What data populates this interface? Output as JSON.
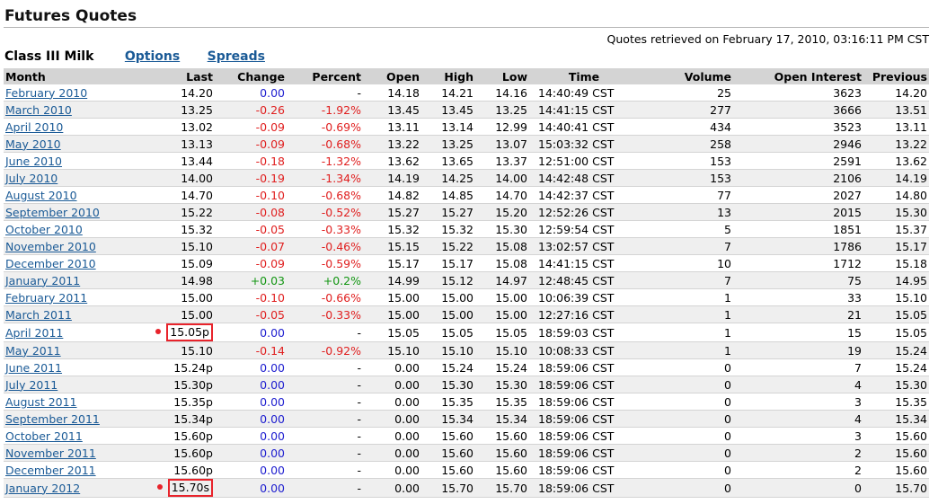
{
  "page_title": "Futures Quotes",
  "product": "Class III Milk",
  "nav": {
    "options": "Options",
    "spreads": "Spreads"
  },
  "retrieved": "Quotes retrieved on February 17, 2010, 03:16:11 PM CST",
  "columns": [
    "Month",
    "Last",
    "Change",
    "Percent",
    "Open",
    "High",
    "Low",
    "Time",
    "Volume",
    "Open Interest",
    "Previous"
  ],
  "rows": [
    {
      "month": "February 2010",
      "last": "14.20",
      "change": "0.00",
      "percent": "-",
      "open": "14.18",
      "high": "14.21",
      "low": "14.16",
      "time": "14:40:49 CST",
      "volume": "25",
      "oi": "3623",
      "prev": "14.20",
      "highlight": false
    },
    {
      "month": "March 2010",
      "last": "13.25",
      "change": "-0.26",
      "percent": "-1.92%",
      "open": "13.45",
      "high": "13.45",
      "low": "13.25",
      "time": "14:41:15 CST",
      "volume": "277",
      "oi": "3666",
      "prev": "13.51",
      "highlight": false
    },
    {
      "month": "April 2010",
      "last": "13.02",
      "change": "-0.09",
      "percent": "-0.69%",
      "open": "13.11",
      "high": "13.14",
      "low": "12.99",
      "time": "14:40:41 CST",
      "volume": "434",
      "oi": "3523",
      "prev": "13.11",
      "highlight": false
    },
    {
      "month": "May 2010",
      "last": "13.13",
      "change": "-0.09",
      "percent": "-0.68%",
      "open": "13.22",
      "high": "13.25",
      "low": "13.07",
      "time": "15:03:32 CST",
      "volume": "258",
      "oi": "2946",
      "prev": "13.22",
      "highlight": false
    },
    {
      "month": "June 2010",
      "last": "13.44",
      "change": "-0.18",
      "percent": "-1.32%",
      "open": "13.62",
      "high": "13.65",
      "low": "13.37",
      "time": "12:51:00 CST",
      "volume": "153",
      "oi": "2591",
      "prev": "13.62",
      "highlight": false
    },
    {
      "month": "July 2010",
      "last": "14.00",
      "change": "-0.19",
      "percent": "-1.34%",
      "open": "14.19",
      "high": "14.25",
      "low": "14.00",
      "time": "14:42:48 CST",
      "volume": "153",
      "oi": "2106",
      "prev": "14.19",
      "highlight": false
    },
    {
      "month": "August 2010",
      "last": "14.70",
      "change": "-0.10",
      "percent": "-0.68%",
      "open": "14.82",
      "high": "14.85",
      "low": "14.70",
      "time": "14:42:37 CST",
      "volume": "77",
      "oi": "2027",
      "prev": "14.80",
      "highlight": false
    },
    {
      "month": "September 2010",
      "last": "15.22",
      "change": "-0.08",
      "percent": "-0.52%",
      "open": "15.27",
      "high": "15.27",
      "low": "15.20",
      "time": "12:52:26 CST",
      "volume": "13",
      "oi": "2015",
      "prev": "15.30",
      "highlight": false
    },
    {
      "month": "October 2010",
      "last": "15.32",
      "change": "-0.05",
      "percent": "-0.33%",
      "open": "15.32",
      "high": "15.32",
      "low": "15.30",
      "time": "12:59:54 CST",
      "volume": "5",
      "oi": "1851",
      "prev": "15.37",
      "highlight": false
    },
    {
      "month": "November 2010",
      "last": "15.10",
      "change": "-0.07",
      "percent": "-0.46%",
      "open": "15.15",
      "high": "15.22",
      "low": "15.08",
      "time": "13:02:57 CST",
      "volume": "7",
      "oi": "1786",
      "prev": "15.17",
      "highlight": false
    },
    {
      "month": "December 2010",
      "last": "15.09",
      "change": "-0.09",
      "percent": "-0.59%",
      "open": "15.17",
      "high": "15.17",
      "low": "15.08",
      "time": "14:41:15 CST",
      "volume": "10",
      "oi": "1712",
      "prev": "15.18",
      "highlight": false
    },
    {
      "month": "January 2011",
      "last": "14.98",
      "change": "+0.03",
      "percent": "+0.2%",
      "open": "14.99",
      "high": "15.12",
      "low": "14.97",
      "time": "12:48:45 CST",
      "volume": "7",
      "oi": "75",
      "prev": "14.95",
      "highlight": false
    },
    {
      "month": "February 2011",
      "last": "15.00",
      "change": "-0.10",
      "percent": "-0.66%",
      "open": "15.00",
      "high": "15.00",
      "low": "15.00",
      "time": "10:06:39 CST",
      "volume": "1",
      "oi": "33",
      "prev": "15.10",
      "highlight": false
    },
    {
      "month": "March 2011",
      "last": "15.00",
      "change": "-0.05",
      "percent": "-0.33%",
      "open": "15.00",
      "high": "15.00",
      "low": "15.00",
      "time": "12:27:16 CST",
      "volume": "1",
      "oi": "21",
      "prev": "15.05",
      "highlight": false
    },
    {
      "month": "April 2011",
      "last": "15.05p",
      "change": "0.00",
      "percent": "-",
      "open": "15.05",
      "high": "15.05",
      "low": "15.05",
      "time": "18:59:03 CST",
      "volume": "1",
      "oi": "15",
      "prev": "15.05",
      "highlight": true
    },
    {
      "month": "May 2011",
      "last": "15.10",
      "change": "-0.14",
      "percent": "-0.92%",
      "open": "15.10",
      "high": "15.10",
      "low": "15.10",
      "time": "10:08:33 CST",
      "volume": "1",
      "oi": "19",
      "prev": "15.24",
      "highlight": false
    },
    {
      "month": "June 2011",
      "last": "15.24p",
      "change": "0.00",
      "percent": "-",
      "open": "0.00",
      "high": "15.24",
      "low": "15.24",
      "time": "18:59:06 CST",
      "volume": "0",
      "oi": "7",
      "prev": "15.24",
      "highlight": false
    },
    {
      "month": "July 2011",
      "last": "15.30p",
      "change": "0.00",
      "percent": "-",
      "open": "0.00",
      "high": "15.30",
      "low": "15.30",
      "time": "18:59:06 CST",
      "volume": "0",
      "oi": "4",
      "prev": "15.30",
      "highlight": false
    },
    {
      "month": "August 2011",
      "last": "15.35p",
      "change": "0.00",
      "percent": "-",
      "open": "0.00",
      "high": "15.35",
      "low": "15.35",
      "time": "18:59:06 CST",
      "volume": "0",
      "oi": "3",
      "prev": "15.35",
      "highlight": false
    },
    {
      "month": "September 2011",
      "last": "15.34p",
      "change": "0.00",
      "percent": "-",
      "open": "0.00",
      "high": "15.34",
      "low": "15.34",
      "time": "18:59:06 CST",
      "volume": "0",
      "oi": "4",
      "prev": "15.34",
      "highlight": false
    },
    {
      "month": "October 2011",
      "last": "15.60p",
      "change": "0.00",
      "percent": "-",
      "open": "0.00",
      "high": "15.60",
      "low": "15.60",
      "time": "18:59:06 CST",
      "volume": "0",
      "oi": "3",
      "prev": "15.60",
      "highlight": false
    },
    {
      "month": "November 2011",
      "last": "15.60p",
      "change": "0.00",
      "percent": "-",
      "open": "0.00",
      "high": "15.60",
      "low": "15.60",
      "time": "18:59:06 CST",
      "volume": "0",
      "oi": "2",
      "prev": "15.60",
      "highlight": false
    },
    {
      "month": "December 2011",
      "last": "15.60p",
      "change": "0.00",
      "percent": "-",
      "open": "0.00",
      "high": "15.60",
      "low": "15.60",
      "time": "18:59:06 CST",
      "volume": "0",
      "oi": "2",
      "prev": "15.60",
      "highlight": false
    },
    {
      "month": "January 2012",
      "last": "15.70s",
      "change": "0.00",
      "percent": "-",
      "open": "0.00",
      "high": "15.70",
      "low": "15.70",
      "time": "18:59:06 CST",
      "volume": "0",
      "oi": "0",
      "prev": "15.70",
      "highlight": true
    }
  ],
  "colors": {
    "link": "#1a5a96",
    "positive": "#139613",
    "negative": "#e02020",
    "unchanged": "#2020d0",
    "highlight": "#e8232b",
    "header_bg": "#d4d4d4",
    "alt_row_bg": "#efefef"
  }
}
